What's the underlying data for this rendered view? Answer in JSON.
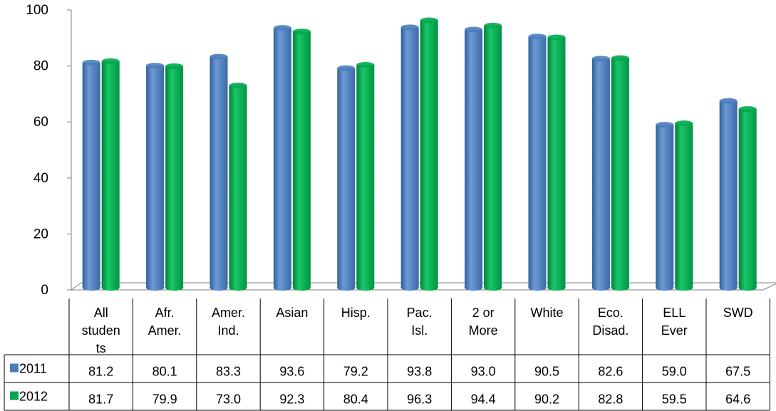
{
  "chart_data": {
    "type": "bar",
    "title": "",
    "xlabel": "",
    "ylabel": "",
    "ylim": [
      0,
      100
    ],
    "yticks": [
      0,
      20,
      40,
      60,
      80,
      100
    ],
    "grid": false,
    "legend": "data-table-left",
    "categories": [
      [
        "All",
        "studen",
        "ts"
      ],
      [
        "Afr.",
        "Amer."
      ],
      [
        "Amer.",
        "Ind."
      ],
      [
        "Asian"
      ],
      [
        "Hisp."
      ],
      [
        "Pac.",
        "Isl."
      ],
      [
        "2 or",
        "More"
      ],
      [
        "White"
      ],
      [
        "Eco.",
        "Disad."
      ],
      [
        "ELL",
        "Ever"
      ],
      [
        "SWD"
      ]
    ],
    "series": [
      {
        "name": "2011",
        "color": "#4a7ebb",
        "values": [
          81.2,
          80.1,
          83.3,
          93.6,
          79.2,
          93.8,
          93.0,
          90.5,
          82.6,
          59.0,
          67.5
        ],
        "labels": [
          "81.2",
          "80.1",
          "83.3",
          "93.6",
          "79.2",
          "93.8",
          "93.0",
          "90.5",
          "82.6",
          "59.0",
          "67.5"
        ]
      },
      {
        "name": "2012",
        "color": "#00a94f",
        "values": [
          81.7,
          79.9,
          73.0,
          92.3,
          80.4,
          96.3,
          94.4,
          90.2,
          82.8,
          59.5,
          64.6
        ],
        "labels": [
          "81.7",
          "79.9",
          "73.0",
          "92.3",
          "80.4",
          "96.3",
          "94.4",
          "90.2",
          "82.8",
          "59.5",
          "64.6"
        ]
      }
    ]
  }
}
